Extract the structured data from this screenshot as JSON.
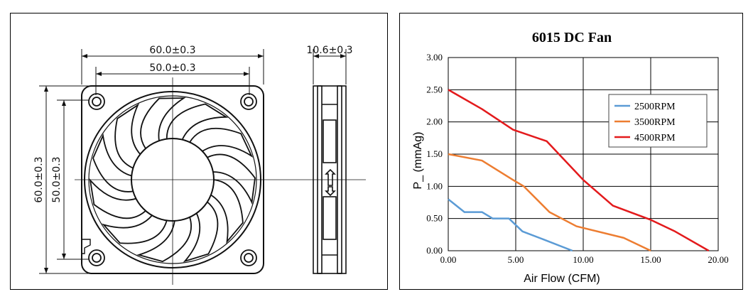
{
  "drawing": {
    "dim_outer_width": "60.0±0.3",
    "dim_hole_width": "50.0±0.3",
    "dim_thickness": "10.6±0.3",
    "dim_outer_height": "60.0±0.3",
    "dim_hole_height": "50.0±0.3"
  },
  "chart_data": {
    "type": "line",
    "title": "6015 DC Fan",
    "xlabel": "Air Flow (CFM)",
    "ylabel": "P_ (mmAg)",
    "xlim": [
      0,
      20
    ],
    "ylim": [
      0,
      3
    ],
    "x_ticks": [
      "0.00",
      "5.00",
      "10.00",
      "15.00",
      "20.00"
    ],
    "y_ticks": [
      "0.00",
      "0.50",
      "1.00",
      "1.50",
      "2.00",
      "2.50",
      "3.00"
    ],
    "grid": true,
    "legend_position": "upper-right",
    "series": [
      {
        "name": "2500RPM",
        "color": "#5b9bd5",
        "x": [
          0,
          1.2,
          2.5,
          3.3,
          4.5,
          5.5,
          7.0,
          9.2
        ],
        "y": [
          0.8,
          0.6,
          0.6,
          0.5,
          0.5,
          0.3,
          0.18,
          0.0
        ]
      },
      {
        "name": "3500RPM",
        "color": "#ed7d31",
        "x": [
          0,
          2.5,
          4.8,
          5.6,
          7.5,
          9.5,
          13.0,
          15.0
        ],
        "y": [
          1.5,
          1.4,
          1.1,
          1.0,
          0.6,
          0.38,
          0.2,
          0.0
        ]
      },
      {
        "name": "4500RPM",
        "color": "#e31a1c",
        "x": [
          0,
          2.5,
          4.8,
          7.3,
          10.0,
          12.2,
          15.0,
          16.8,
          19.3
        ],
        "y": [
          2.5,
          2.2,
          1.88,
          1.7,
          1.1,
          0.7,
          0.48,
          0.3,
          0.0
        ]
      }
    ]
  }
}
